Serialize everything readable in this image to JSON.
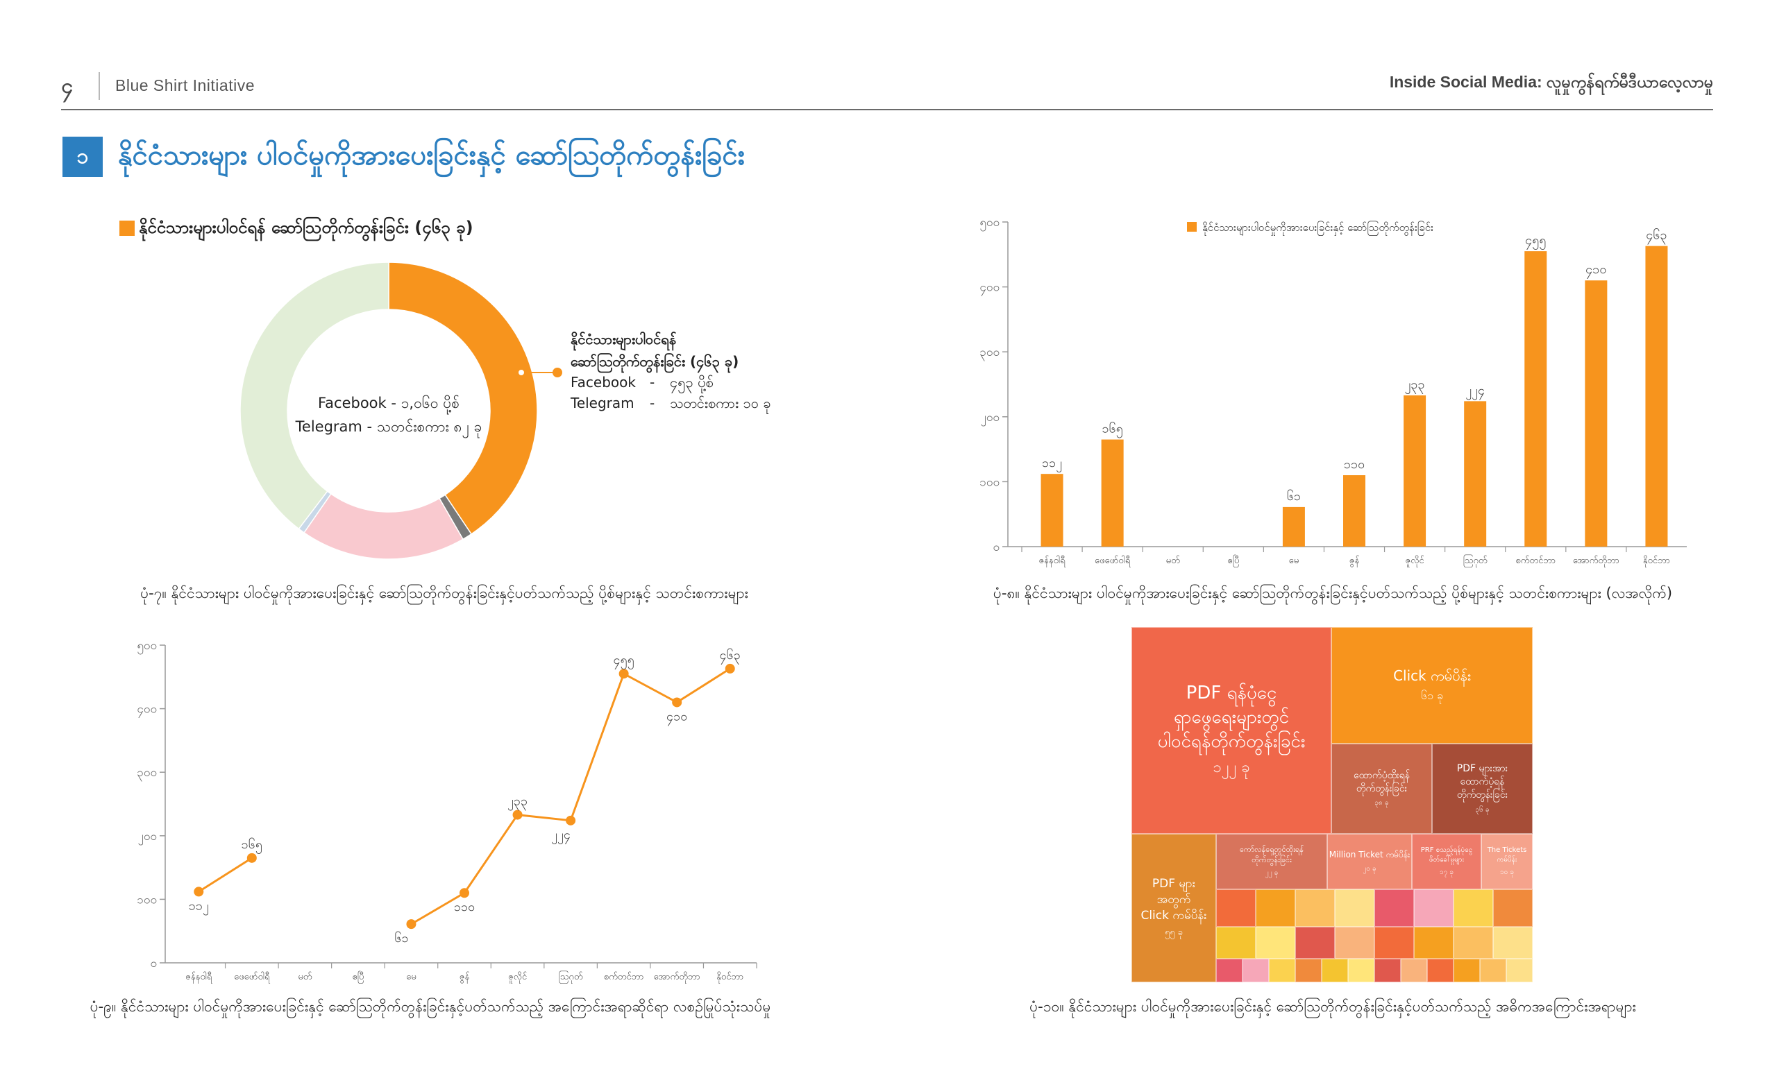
{
  "header": {
    "page_number": "၄",
    "organization": "Blue Shirt Initiative",
    "publication": "Inside Social Media: လူမှုကွန်ရက်မီဒီယာလေ့လာမှု"
  },
  "section": {
    "number": "၁",
    "title": "နိုင်ငံသားများ ပါဝင်မှုကိုအားပေးခြင်းနှင့် ဆော်သြတိုက်တွန်းခြင်း"
  },
  "colors": {
    "accent": "#f7941d",
    "brand_blue": "#2c7fc0",
    "light_green": "#e2eed7",
    "light_pink": "#f9c9cf"
  },
  "donut": {
    "legend_label": "နိုင်ငံသားများပါဝင်ရန် ဆော်သြတိုက်တွန်းခြင်း (၄၆၃ ခု)",
    "center_line1": "Facebook - ၁,၀၆၀ ပို့စ်",
    "center_line2": "Telegram - သတင်းစကား ၈၂ ခု",
    "callout_title1": "နိုင်ငံသားများပါဝင်ရန်",
    "callout_title2": "ဆော်သြတိုက်တွန်းခြင်း (၄၆၃ ခု)",
    "callout_fb_label": "Facebook",
    "callout_fb_value": "၄၅၃ ပို့စ်",
    "callout_tg_label": "Telegram",
    "callout_tg_value": "သတင်းစကား ၁၀ ခု",
    "caption": "ပုံ-၇။ နိုင်ငံသားများ ပါဝင်မှုကိုအားပေးခြင်းနှင့် ဆော်သြတိုက်တွန်းခြင်းနှင့်ပတ်သက်သည့် ပို့စ်များနှင့် သတင်းစကားများ"
  },
  "bar_figure": {
    "caption": "ပုံ-၈။ နိုင်ငံသားများ ပါဝင်မှုကိုအားပေးခြင်းနှင့် ဆော်သြတိုက်တွန်းခြင်းနှင့်ပတ်သက်သည့် ပို့စ်များနှင့် သတင်းစကားများ (လအလိုက်)"
  },
  "line_figure": {
    "caption": "ပုံ-၉။ နိုင်ငံသားများ ပါဝင်မှုကိုအားပေးခြင်းနှင့် ဆော်သြတိုက်တွန်းခြင်းနှင့်ပတ်သက်သည့် အကြောင်းအရာဆိုင်ရာ လစဉ်မြုပ်သုံးသပ်မှု"
  },
  "treemap": {
    "caption": "ပုံ-၁၀။ နိုင်ငံသားများ ပါဝင်မှုကိုအားပေးခြင်းနှင့် ဆော်သြတိုက်တွန်းခြင်းနှင့်ပတ်သက်သည့် အဓိကအကြောင်းအရာများ",
    "big": [
      {
        "label": "PDF ရန်ပုံငွေ\nရှာဖွေရေးများတွင်\nပါဝင်ရန်တိုက်တွန်းခြင်း",
        "value": "၁၂၂ ခု",
        "color": "#f0674a"
      },
      {
        "label": "Click ကမ်ပိန်း",
        "value": "၆၁ ခု",
        "color": "#f7941d"
      },
      {
        "label": "ထောက်ပံ့ထိုးရန်\nတိုက်တွန်းခြင်း",
        "value": "၃၈ ခု",
        "color": "#c8674a"
      },
      {
        "label": "PDF များအား\nထောက်ပံ့ရန်\nတိုက်တွန်းခြင်း",
        "value": "၃၆ ခု",
        "color": "#a64d37"
      },
      {
        "label": "PDF များ\nအတွက်\nClick ကမ်ပိန်း",
        "value": "၅၅ ခု",
        "color": "#e08a2f"
      },
      {
        "label": "ကော်လန်ရှေ့တွင်ထိုးရန်\nတိုက်တွန်းခြင်း",
        "value": "၂၂ ခု",
        "color": "#d8745c"
      },
      {
        "label": "Million Ticket ကမ်ပိန်း",
        "value": "၂၀ ခု",
        "color": "#ef8a72"
      },
      {
        "label": "PRF စသည့်ရန်ပုံငွေ\nဖိတ်ခေါ်မှုများ",
        "value": "၁၇ ခု",
        "color": "#ee7b6a"
      },
      {
        "label": "The Tickets\nကမ်ပိန်း",
        "value": "၁၀ ခု",
        "color": "#f5a38c"
      }
    ]
  },
  "chart_data": [
    {
      "type": "pie",
      "title": "",
      "legend": [
        "နိုင်ငံသားများပါဝင်ရန် ဆော်သြတိုက်တွန်းခြင်း (၄၆၃ ခု)"
      ],
      "slices": [
        {
          "label": "နိုင်ငံသားများပါဝင်ရန် ဆော်သြတိုက်တွန်းခြင်း",
          "value": 463,
          "color": "#f7941d"
        },
        {
          "label": "",
          "value": 12,
          "color": "#7a7a7a"
        },
        {
          "label": "",
          "value": 205,
          "color": "#f9c9cf"
        },
        {
          "label": "",
          "value": 8,
          "color": "#c8d8e8"
        },
        {
          "label": "",
          "value": 452,
          "color": "#e2eed7"
        }
      ]
    },
    {
      "type": "bar",
      "title": "",
      "legend": [
        "နိုင်ငံသားများပါဝင်မှုကိုအားပေးခြင်းနှင့် ဆော်သြတိုက်တွန်းခြင်း"
      ],
      "categories": [
        "ဇန်နဝါရီ",
        "ဖေဖော်ဝါရီ",
        "မတ်",
        "ဧပြီ",
        "မေ",
        "ဇွန်",
        "ဇူလိုင်",
        "ဩဂုတ်",
        "စက်တင်ဘာ",
        "အောက်တိုဘာ",
        "နိုဝင်ဘာ"
      ],
      "values": [
        112,
        165,
        null,
        null,
        61,
        110,
        233,
        224,
        455,
        410,
        463
      ],
      "value_labels": [
        "၁၁၂",
        "၁၆၅",
        "",
        "",
        "၆၁",
        "၁၁၀",
        "၂၃၃",
        "၂၂၄",
        "၄၅၅",
        "၄၁၀",
        "၄၆၃"
      ],
      "ylim": [
        0,
        500
      ],
      "yticks": [
        0,
        100,
        200,
        300,
        400,
        500
      ],
      "ytick_labels": [
        "၀",
        "၁၀၀",
        "၂၀၀",
        "၃၀၀",
        "၄၀၀",
        "၅၀၀"
      ]
    },
    {
      "type": "line",
      "title": "",
      "categories": [
        "ဇန်နဝါရီ",
        "ဖေဖော်ဝါရီ",
        "မတ်",
        "ဧပြီ",
        "မေ",
        "ဇွန်",
        "ဇူလိုင်",
        "ဩဂုတ်",
        "စက်တင်ဘာ",
        "အောက်တိုဘာ",
        "နိုဝင်ဘာ"
      ],
      "values": [
        112,
        165,
        null,
        null,
        61,
        110,
        233,
        224,
        455,
        410,
        463
      ],
      "value_labels": [
        "၁၁၂",
        "၁၆၅",
        "",
        "",
        "၆၁",
        "၁၁၀",
        "၂၃၃",
        "၂၂၄",
        "၄၅၅",
        "၄၁၀",
        "၄၆၃"
      ],
      "ylim": [
        0,
        500
      ],
      "yticks": [
        0,
        100,
        200,
        300,
        400,
        500
      ],
      "ytick_labels": [
        "၀",
        "၁၀၀",
        "၂၀၀",
        "၃၀၀",
        "၄၀၀",
        "၅၀၀"
      ]
    }
  ]
}
